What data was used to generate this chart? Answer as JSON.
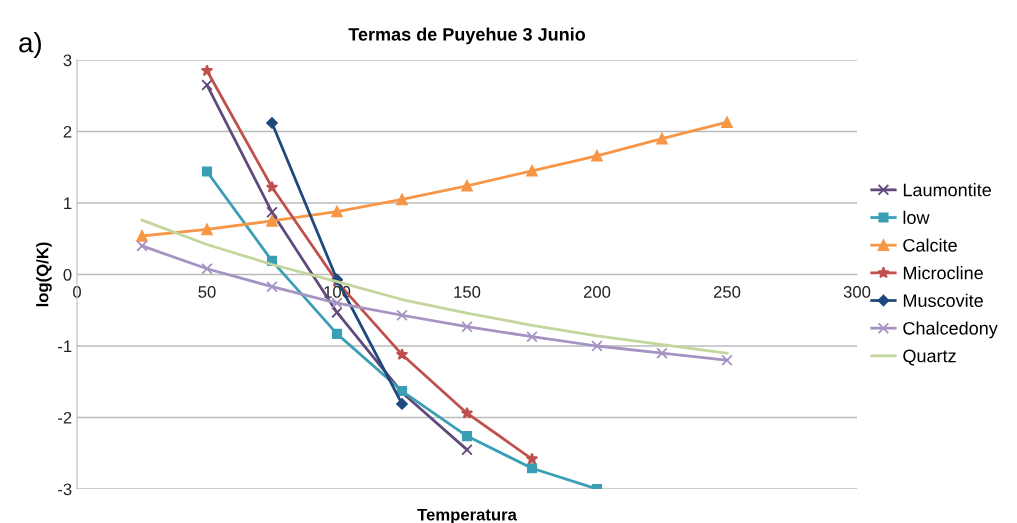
{
  "chart_data": {
    "type": "line",
    "title": "Termas de Puyehue 3 Junio",
    "xlabel": "Temperatura",
    "ylabel": "log(Q/K)",
    "annotations": [
      "a)"
    ],
    "xlim": [
      0,
      300
    ],
    "xticks": [
      0,
      50,
      100,
      150,
      200,
      250,
      300
    ],
    "ylim": [
      -3,
      3
    ],
    "yticks": [
      -3,
      -2,
      -1,
      0,
      1,
      2,
      3
    ],
    "grid": "y",
    "legend": "right",
    "line_style": "solid",
    "series": [
      {
        "name": "Laumontite",
        "color": "#604a7b",
        "marker": "cross",
        "x": [
          50,
          75,
          100,
          125,
          150
        ],
        "values": [
          2.65,
          0.87,
          -0.53,
          -1.65,
          -2.45
        ]
      },
      {
        "name": "low",
        "color": "#3a9fb5",
        "marker": "square",
        "x": [
          50,
          75,
          100,
          125,
          150,
          175,
          200
        ],
        "values": [
          1.44,
          0.19,
          -0.83,
          -1.63,
          -2.26,
          -2.71,
          -3.0
        ]
      },
      {
        "name": "Calcite",
        "color": "#f79646",
        "marker": "triangle",
        "x": [
          25,
          50,
          75,
          100,
          125,
          150,
          175,
          200,
          225,
          250
        ],
        "values": [
          0.54,
          0.63,
          0.75,
          0.88,
          1.05,
          1.24,
          1.45,
          1.66,
          1.9,
          2.13
        ]
      },
      {
        "name": "Microcline",
        "color": "#c0504d",
        "marker": "star",
        "x": [
          50,
          75,
          100,
          125,
          150,
          175
        ],
        "values": [
          2.85,
          1.22,
          -0.1,
          -1.12,
          -1.94,
          -2.58
        ]
      },
      {
        "name": "Muscovite",
        "color": "#1f497d",
        "marker": "diamond",
        "x": [
          75,
          100,
          125
        ],
        "values": [
          2.12,
          -0.07,
          -1.81
        ]
      },
      {
        "name": "Chalcedony",
        "color": "#a593c2",
        "marker": "cross",
        "x": [
          25,
          50,
          75,
          100,
          125,
          150,
          175,
          200,
          225,
          250
        ],
        "values": [
          0.4,
          0.08,
          -0.17,
          -0.4,
          -0.57,
          -0.73,
          -0.87,
          -1.0,
          -1.1,
          -1.2
        ]
      },
      {
        "name": "Quartz",
        "color": "#c3d69b",
        "marker": "none",
        "x": [
          25,
          50,
          75,
          100,
          125,
          150,
          175,
          200,
          225,
          250
        ],
        "values": [
          0.76,
          0.42,
          0.14,
          -0.1,
          -0.35,
          -0.54,
          -0.71,
          -0.86,
          -0.98,
          -1.1
        ]
      }
    ]
  }
}
